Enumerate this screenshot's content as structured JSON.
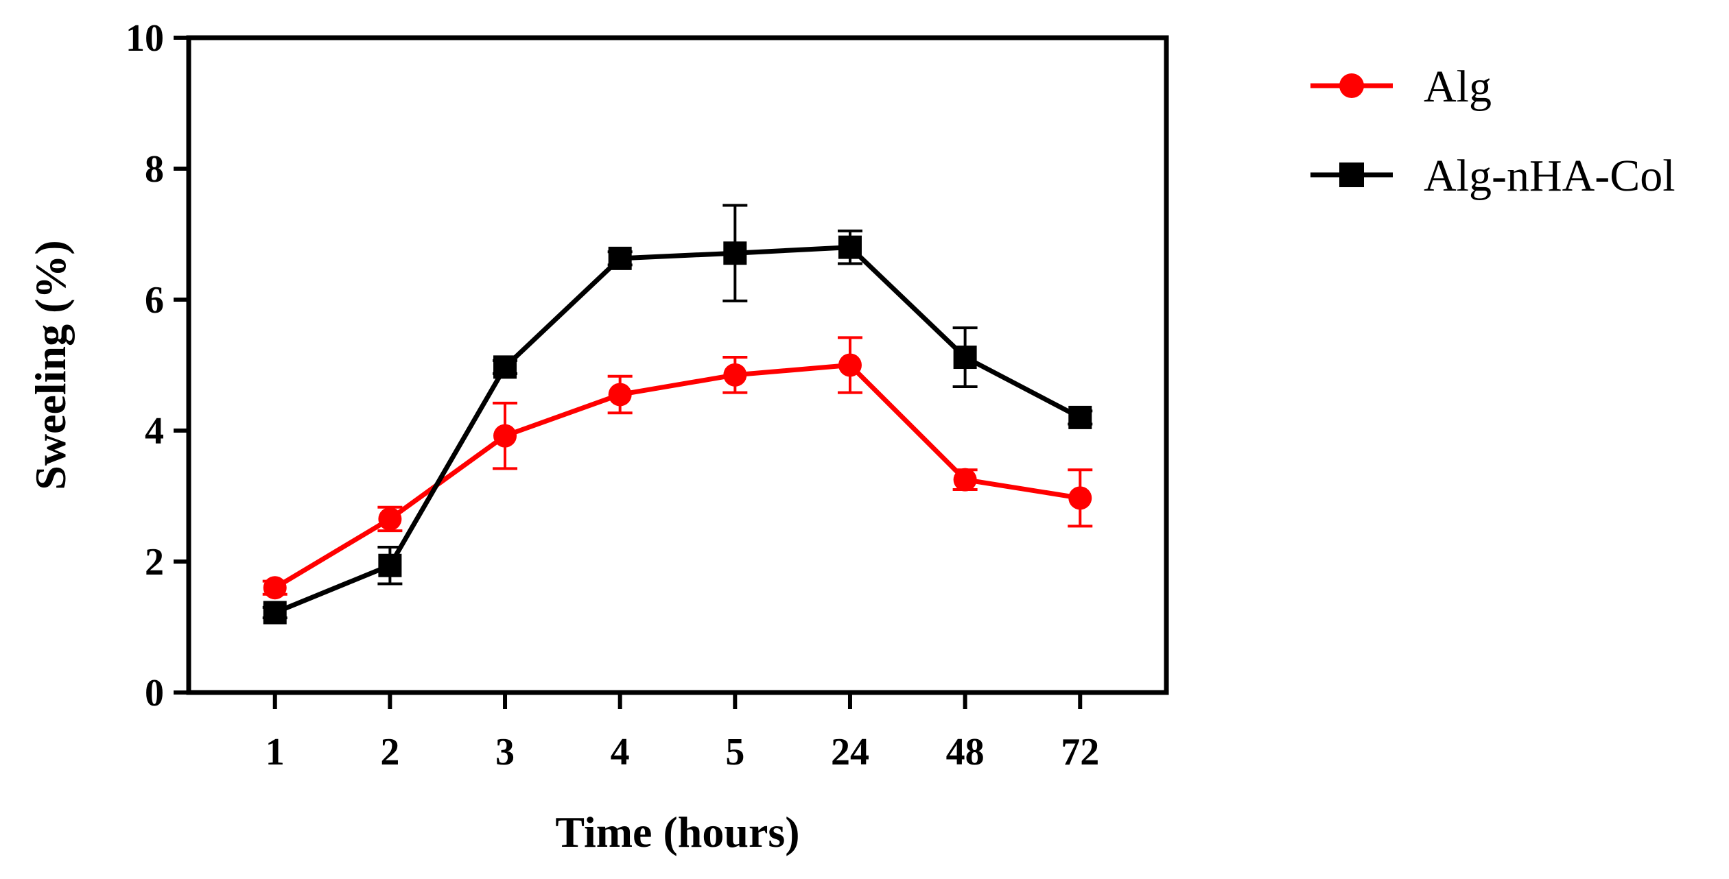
{
  "chart_data": {
    "type": "line",
    "title": "",
    "xlabel": "Time (hours)",
    "ylabel": "Sweeling (%)",
    "categories": [
      "1",
      "2",
      "3",
      "4",
      "5",
      "24",
      "48",
      "72"
    ],
    "ylim": [
      0,
      10
    ],
    "yticks": [
      "0",
      "2",
      "4",
      "6",
      "8",
      "10"
    ],
    "grid": false,
    "legend_position": "right",
    "series": [
      {
        "name": "Alg",
        "color": "#ff0000",
        "marker": "circle",
        "values": [
          1.6,
          2.65,
          3.92,
          4.55,
          4.85,
          5.0,
          3.25,
          2.97
        ],
        "errors": [
          0.1,
          0.18,
          0.5,
          0.28,
          0.27,
          0.42,
          0.15,
          0.43
        ]
      },
      {
        "name": "Alg-nHA-Col",
        "color": "#000000",
        "marker": "square",
        "values": [
          1.22,
          1.94,
          4.97,
          6.63,
          6.71,
          6.8,
          5.12,
          4.2
        ],
        "errors": [
          0.08,
          0.28,
          0.1,
          0.1,
          0.73,
          0.25,
          0.45,
          0.1
        ]
      }
    ]
  }
}
